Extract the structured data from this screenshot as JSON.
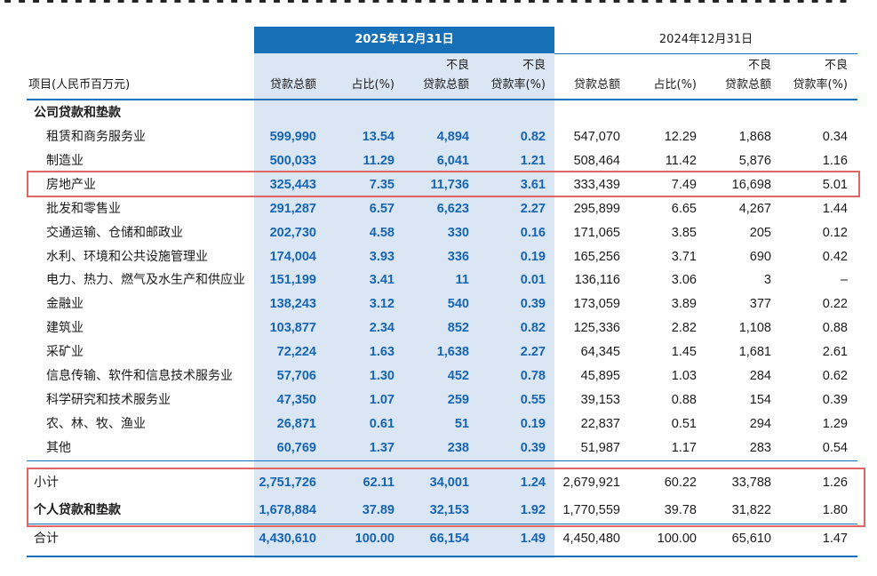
{
  "period_current": "2025年12月31日",
  "period_previous": "2024年12月31日",
  "headers": {
    "item": "项目(人民币百万元)",
    "loan_total": "贷款总额",
    "share": "占比(%)",
    "npl_line1": "不良",
    "npl_line2": "贷款总额",
    "npl_rate_line1": "不良",
    "npl_rate_line2": "贷款率(%)"
  },
  "section_corporate": "公司贷款和垫款",
  "rows": [
    {
      "label": "租赁和商务服务业",
      "c": [
        "599,990",
        "13.54",
        "4,894",
        "0.82"
      ],
      "p": [
        "547,070",
        "12.29",
        "1,868",
        "0.34"
      ]
    },
    {
      "label": "制造业",
      "c": [
        "500,033",
        "11.29",
        "6,041",
        "1.21"
      ],
      "p": [
        "508,464",
        "11.42",
        "5,876",
        "1.16"
      ]
    },
    {
      "label": "房地产业",
      "c": [
        "325,443",
        "7.35",
        "11,736",
        "3.61"
      ],
      "p": [
        "333,439",
        "7.49",
        "16,698",
        "5.01"
      ]
    },
    {
      "label": "批发和零售业",
      "c": [
        "291,287",
        "6.57",
        "6,623",
        "2.27"
      ],
      "p": [
        "295,899",
        "6.65",
        "4,267",
        "1.44"
      ]
    },
    {
      "label": "交通运输、仓储和邮政业",
      "c": [
        "202,730",
        "4.58",
        "330",
        "0.16"
      ],
      "p": [
        "171,065",
        "3.85",
        "205",
        "0.12"
      ]
    },
    {
      "label": "水利、环境和公共设施管理业",
      "c": [
        "174,004",
        "3.93",
        "336",
        "0.19"
      ],
      "p": [
        "165,256",
        "3.71",
        "690",
        "0.42"
      ]
    },
    {
      "label": "电力、热力、燃气及水生产和供应业",
      "c": [
        "151,199",
        "3.41",
        "11",
        "0.01"
      ],
      "p": [
        "136,116",
        "3.06",
        "3",
        "–"
      ]
    },
    {
      "label": "金融业",
      "c": [
        "138,243",
        "3.12",
        "540",
        "0.39"
      ],
      "p": [
        "173,059",
        "3.89",
        "377",
        "0.22"
      ]
    },
    {
      "label": "建筑业",
      "c": [
        "103,877",
        "2.34",
        "852",
        "0.82"
      ],
      "p": [
        "125,336",
        "2.82",
        "1,108",
        "0.88"
      ]
    },
    {
      "label": "采矿业",
      "c": [
        "72,224",
        "1.63",
        "1,638",
        "2.27"
      ],
      "p": [
        "64,345",
        "1.45",
        "1,681",
        "2.61"
      ]
    },
    {
      "label": "信息传输、软件和信息技术服务业",
      "c": [
        "57,706",
        "1.30",
        "452",
        "0.78"
      ],
      "p": [
        "45,895",
        "1.03",
        "284",
        "0.62"
      ]
    },
    {
      "label": "科学研究和技术服务业",
      "c": [
        "47,350",
        "1.07",
        "259",
        "0.55"
      ],
      "p": [
        "39,153",
        "0.88",
        "154",
        "0.39"
      ]
    },
    {
      "label": "农、林、牧、渔业",
      "c": [
        "26,871",
        "0.61",
        "51",
        "0.19"
      ],
      "p": [
        "22,837",
        "0.51",
        "294",
        "1.29"
      ]
    },
    {
      "label": "其他",
      "c": [
        "60,769",
        "1.37",
        "238",
        "0.39"
      ],
      "p": [
        "51,987",
        "1.17",
        "283",
        "0.54"
      ]
    }
  ],
  "subtotal": {
    "label": "小计",
    "c": [
      "2,751,726",
      "62.11",
      "34,001",
      "1.24"
    ],
    "p": [
      "2,679,921",
      "60.22",
      "33,788",
      "1.26"
    ]
  },
  "personal": {
    "label": "个人贷款和垫款",
    "c": [
      "1,678,884",
      "37.89",
      "32,153",
      "1.92"
    ],
    "p": [
      "1,770,559",
      "39.78",
      "31,822",
      "1.80"
    ]
  },
  "total": {
    "label": "合计",
    "c": [
      "4,430,610",
      "100.00",
      "66,154",
      "1.49"
    ],
    "p": [
      "4,450,480",
      "100.00",
      "65,610",
      "1.47"
    ]
  },
  "colors": {
    "highlight_header": "#1570b8",
    "highlight_column": "#dbe6f4",
    "current_values": "#1565b3",
    "annotation_box": "#e06666",
    "rule": "#1570b8"
  }
}
